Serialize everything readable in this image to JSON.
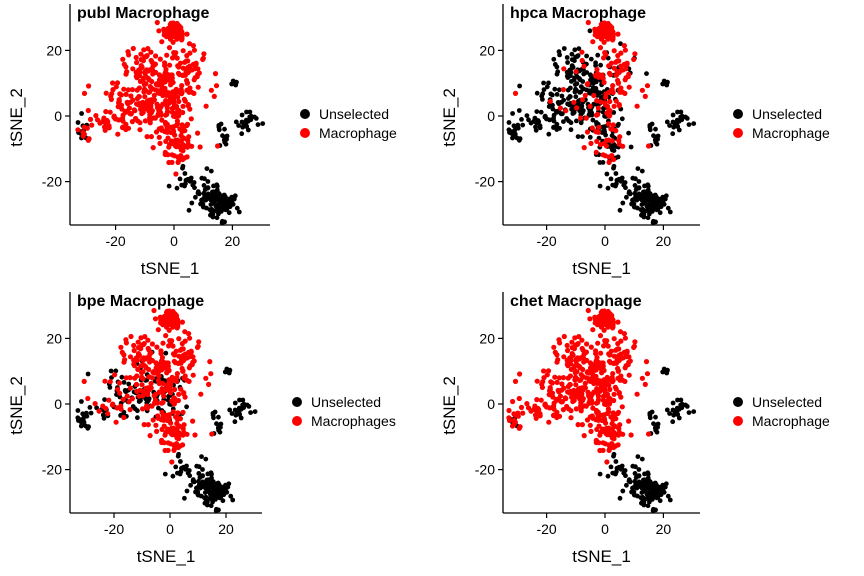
{
  "chart_data": [
    {
      "type": "scatter",
      "title": "publ Macrophage",
      "xlabel": "tSNE_1",
      "ylabel": "tSNE_2",
      "xticks": [
        -20,
        0,
        20
      ],
      "yticks": [
        -20,
        0,
        20
      ],
      "series": [
        {
          "name": "Unselected",
          "color": "#000000"
        },
        {
          "name": "Macrophage",
          "color": "#ff0000"
        }
      ],
      "legend": "right",
      "grid": false
    },
    {
      "type": "scatter",
      "title": "hpca Macrophage",
      "xlabel": "tSNE_1",
      "ylabel": "tSNE_2",
      "xticks": [
        -20,
        0,
        20
      ],
      "yticks": [
        -20,
        0,
        20
      ],
      "series": [
        {
          "name": "Unselected",
          "color": "#000000"
        },
        {
          "name": "Macrophage",
          "color": "#ff0000"
        }
      ],
      "legend": "right",
      "grid": false
    },
    {
      "type": "scatter",
      "title": "bpe Macrophage",
      "xlabel": "tSNE_1",
      "ylabel": "tSNE_2",
      "xticks": [
        -20,
        0,
        20
      ],
      "yticks": [
        -20,
        0,
        20
      ],
      "series": [
        {
          "name": "Unselected",
          "color": "#000000"
        },
        {
          "name": "Macrophages",
          "color": "#ff0000"
        }
      ],
      "legend": "right",
      "grid": false
    },
    {
      "type": "scatter",
      "title": "chet Macrophage",
      "xlabel": "tSNE_1",
      "ylabel": "tSNE_2",
      "xticks": [
        -20,
        0,
        20
      ],
      "yticks": [
        -20,
        0,
        20
      ],
      "series": [
        {
          "name": "Unselected",
          "color": "#000000"
        },
        {
          "name": "Macrophage",
          "color": "#ff0000"
        }
      ],
      "legend": "right",
      "grid": false
    }
  ]
}
